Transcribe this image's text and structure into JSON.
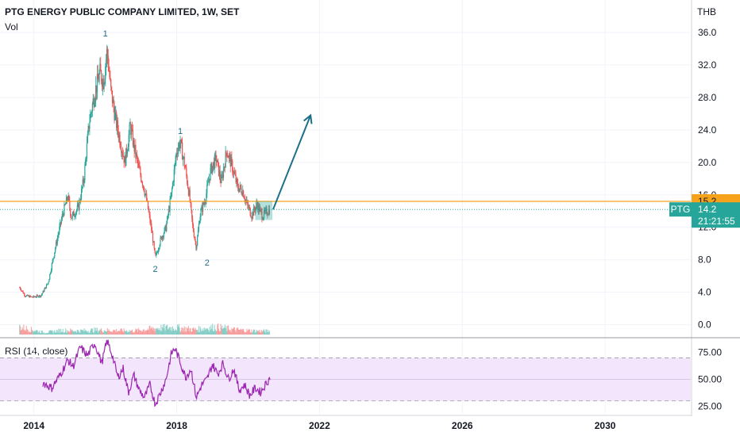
{
  "header": {
    "title": "PTG ENERGY PUBLIC COMPANY LIMITED, 1W, SET",
    "volume_label": "Vol",
    "currency": "THB",
    "rsi_label": "RSI (14, close)"
  },
  "colors": {
    "up": "#26a69a",
    "down": "#ef5350",
    "level_line": "#f7a21b",
    "current_line": "#26a69a",
    "rsi_line": "#9c27b0",
    "rsi_band": "#f3e5fb",
    "arrow": "#1e6f8a",
    "wave_label": "#1e6f8a"
  },
  "chart_data": [
    {
      "type": "candlestick",
      "panel": "price",
      "title": "PTG ENERGY PUBLIC COMPANY LIMITED, 1W, SET",
      "ylabel": "THB",
      "ylim": [
        -1.5,
        40
      ],
      "xlim": [
        2014.05,
        2033.4
      ],
      "y_ticks": [
        "0.0",
        "4.0",
        "8.0",
        "12.0",
        "16.0",
        "20.0",
        "24.0",
        "28.0",
        "32.0",
        "36.0"
      ],
      "y_tick_values": [
        0,
        4,
        8,
        12,
        16,
        20,
        24,
        28,
        32,
        36
      ],
      "x_ticks": [
        "2014",
        "2018",
        "2022",
        "2026",
        "2030"
      ],
      "x_tick_values": [
        2015,
        2019,
        2023,
        2027,
        2031
      ],
      "price_path": [
        [
          2014.6,
          4.6
        ],
        [
          2014.75,
          3.6
        ],
        [
          2014.95,
          3.4
        ],
        [
          2015.2,
          3.6
        ],
        [
          2015.4,
          5.2
        ],
        [
          2015.6,
          9.5
        ],
        [
          2015.8,
          13.5
        ],
        [
          2015.95,
          15.8
        ],
        [
          2016.05,
          13.2
        ],
        [
          2016.25,
          14.5
        ],
        [
          2016.4,
          18.0
        ],
        [
          2016.55,
          25.0
        ],
        [
          2016.7,
          28.5
        ],
        [
          2016.85,
          31.0
        ],
        [
          2016.95,
          30.0
        ],
        [
          2017.05,
          33.8
        ],
        [
          2017.15,
          29.0
        ],
        [
          2017.3,
          25.0
        ],
        [
          2017.45,
          22.0
        ],
        [
          2017.55,
          20.0
        ],
        [
          2017.7,
          24.5
        ],
        [
          2017.8,
          22.0
        ],
        [
          2017.95,
          19.0
        ],
        [
          2018.05,
          17.5
        ],
        [
          2018.15,
          15.5
        ],
        [
          2018.3,
          11.5
        ],
        [
          2018.4,
          8.2
        ],
        [
          2018.55,
          10.5
        ],
        [
          2018.7,
          12.0
        ],
        [
          2018.85,
          16.0
        ],
        [
          2019.0,
          21.5
        ],
        [
          2019.1,
          22.5
        ],
        [
          2019.25,
          19.0
        ],
        [
          2019.35,
          16.0
        ],
        [
          2019.45,
          12.0
        ],
        [
          2019.55,
          9.5
        ],
        [
          2019.65,
          13.5
        ],
        [
          2019.8,
          15.5
        ],
        [
          2019.95,
          19.0
        ],
        [
          2020.1,
          20.5
        ],
        [
          2020.25,
          17.5
        ],
        [
          2020.4,
          21.5
        ],
        [
          2020.55,
          19.5
        ],
        [
          2020.7,
          17.0
        ],
        [
          2020.85,
          16.5
        ],
        [
          2020.95,
          15.0
        ],
        [
          2021.1,
          13.5
        ],
        [
          2021.25,
          14.8
        ],
        [
          2021.4,
          13.4
        ],
        [
          2021.6,
          14.2
        ]
      ],
      "volume_path": [
        [
          2014.6,
          0.9
        ],
        [
          2015.3,
          0.25
        ],
        [
          2015.8,
          0.5
        ],
        [
          2016.3,
          0.45
        ],
        [
          2016.8,
          0.55
        ],
        [
          2017.2,
          0.5
        ],
        [
          2017.8,
          0.45
        ],
        [
          2018.4,
          0.75
        ],
        [
          2018.9,
          0.85
        ],
        [
          2019.5,
          0.6
        ],
        [
          2020.1,
          0.9
        ],
        [
          2020.6,
          0.6
        ],
        [
          2021.1,
          0.45
        ],
        [
          2021.6,
          0.4
        ]
      ],
      "levels": [
        {
          "name": "resistance",
          "value": 15.2,
          "label": "15.2"
        },
        {
          "name": "current",
          "value": 14.2,
          "label": "14.2"
        }
      ],
      "price_tag": {
        "symbol": "PTG",
        "value": "14.2",
        "countdown": "21:21:55"
      },
      "wave_labels": [
        {
          "text": "1",
          "x": 2017.0,
          "y": 35.5
        },
        {
          "text": "2",
          "x": 2018.4,
          "y": 6.5
        },
        {
          "text": "1",
          "x": 2019.1,
          "y": 23.5
        },
        {
          "text": "2",
          "x": 2019.85,
          "y": 7.3
        }
      ],
      "projection_arrow": [
        [
          2021.7,
          14.2
        ],
        [
          2022.75,
          25.8
        ]
      ]
    },
    {
      "type": "line",
      "panel": "rsi",
      "name": "RSI (14, close)",
      "ylim": [
        18,
        88
      ],
      "y_ticks": [
        "25.00",
        "50.00",
        "75.00"
      ],
      "y_tick_values": [
        25,
        50,
        75
      ],
      "band": [
        30,
        70
      ],
      "path": [
        [
          2015.25,
          47
        ],
        [
          2015.5,
          42
        ],
        [
          2015.75,
          55
        ],
        [
          2015.95,
          68
        ],
        [
          2016.1,
          62
        ],
        [
          2016.3,
          80
        ],
        [
          2016.5,
          72
        ],
        [
          2016.7,
          84
        ],
        [
          2016.9,
          65
        ],
        [
          2017.05,
          86
        ],
        [
          2017.2,
          72
        ],
        [
          2017.35,
          52
        ],
        [
          2017.5,
          60
        ],
        [
          2017.65,
          38
        ],
        [
          2017.8,
          54
        ],
        [
          2017.95,
          40
        ],
        [
          2018.1,
          33
        ],
        [
          2018.25,
          45
        ],
        [
          2018.4,
          27
        ],
        [
          2018.55,
          38
        ],
        [
          2018.7,
          50
        ],
        [
          2018.85,
          74
        ],
        [
          2018.95,
          79
        ],
        [
          2019.1,
          66
        ],
        [
          2019.25,
          52
        ],
        [
          2019.4,
          60
        ],
        [
          2019.55,
          33
        ],
        [
          2019.7,
          45
        ],
        [
          2019.85,
          50
        ],
        [
          2020.0,
          64
        ],
        [
          2020.15,
          55
        ],
        [
          2020.3,
          65
        ],
        [
          2020.45,
          50
        ],
        [
          2020.6,
          60
        ],
        [
          2020.75,
          40
        ],
        [
          2020.9,
          45
        ],
        [
          2021.05,
          35
        ],
        [
          2021.2,
          42
        ],
        [
          2021.35,
          38
        ],
        [
          2021.5,
          46
        ],
        [
          2021.62,
          52
        ]
      ]
    }
  ]
}
